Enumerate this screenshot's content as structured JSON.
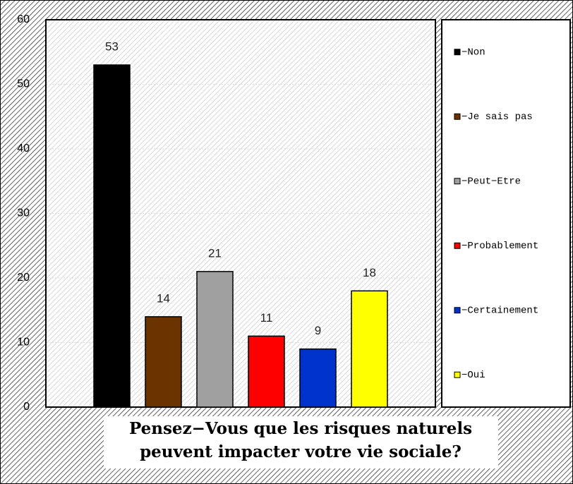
{
  "chart_data": {
    "type": "bar",
    "title": [
      "Pensez−Vous que les risques naturels",
      "peuvent impacter votre vie sociale?"
    ],
    "categories": [
      "−Non",
      "−Je sais pas",
      "−Peut−Etre",
      "−Probablement",
      "−Certainement",
      "−Oui"
    ],
    "values": [
      53,
      14,
      21,
      11,
      9,
      18
    ],
    "colors": [
      "#000000",
      "#6b3300",
      "#a0a0a0",
      "#ff0000",
      "#0033cc",
      "#ffff00"
    ],
    "ylim": [
      0,
      60
    ],
    "yticks": [
      0,
      10,
      20,
      30,
      40,
      50,
      60
    ],
    "grid": true,
    "legend": "right"
  }
}
